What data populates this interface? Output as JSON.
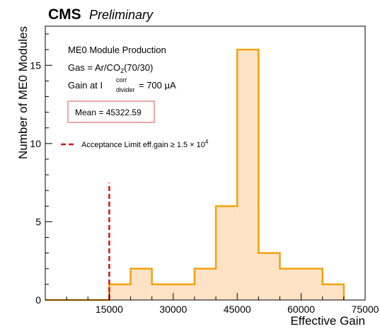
{
  "header": {
    "experiment": "CMS",
    "status": "Preliminary"
  },
  "annotations": {
    "line1": "ME0 Module Production",
    "gas_prefix": "Gas = Ar/CO",
    "gas_sub": "2",
    "gas_suffix": "(70/30)",
    "gain_prefix": "Gain at I",
    "gain_sup": "corr",
    "gain_sub": "divider",
    "gain_suffix": " = 700 μA",
    "mean_label": "Mean = 45322.59"
  },
  "legend": {
    "acceptance_prefix": "Acceptance Limit eff.gain  ≥ 1.5 × 10",
    "acceptance_exp": "4",
    "acceptance_color": "#dd1111"
  },
  "colors": {
    "fill": "#fde2c6",
    "edge": "#f2a20f",
    "mean_box": "#d9534f"
  },
  "chart_data": {
    "type": "bar",
    "title": "",
    "xlabel": "Effective Gain",
    "ylabel": "Number of ME0 Modules",
    "xlim": [
      0,
      75000
    ],
    "ylim": [
      0,
      17.5
    ],
    "x_ticks": [
      "15000",
      "30000",
      "45000",
      "60000",
      "75000"
    ],
    "y_ticks": [
      "0",
      "5",
      "10",
      "15"
    ],
    "bin_edges": [
      15000,
      20000,
      25000,
      30000,
      35000,
      40000,
      45000,
      50000,
      55000,
      60000,
      65000,
      70000
    ],
    "values": [
      1,
      2,
      1,
      1,
      2,
      6,
      16,
      3,
      2,
      2,
      1
    ],
    "acceptance_x": 15000,
    "acceptance_y_top": 7.5,
    "grid": false
  }
}
